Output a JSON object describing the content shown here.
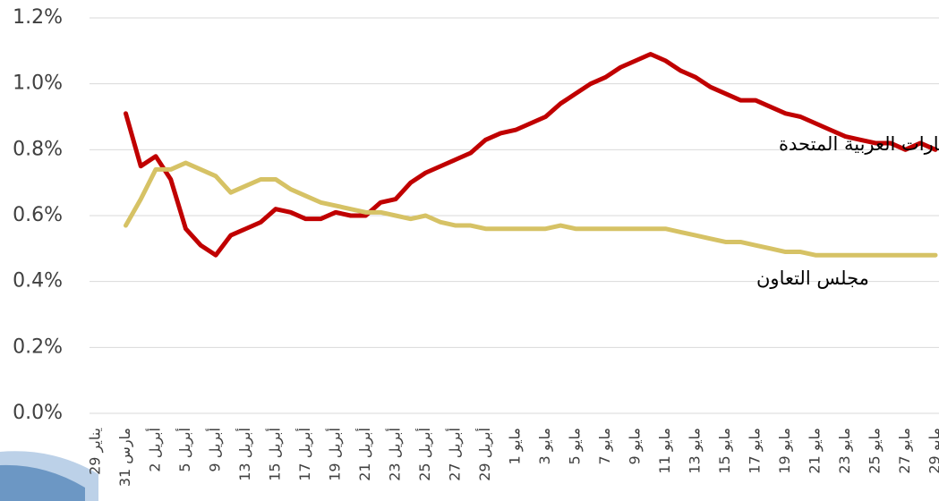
{
  "chart_data": {
    "type": "line",
    "categories": [
      "29 يناير",
      null,
      "31 مارس",
      null,
      "2 أبريل",
      null,
      "5 أبريل",
      null,
      "9 أبريل",
      null,
      "13 أبريل",
      null,
      "15 أبريل",
      null,
      "17 أبريل",
      null,
      "19 أبريل",
      null,
      "21 أبريل",
      null,
      "23 أبريل",
      null,
      "25 أبريل",
      null,
      "27 أبريل",
      null,
      "29 أبريل",
      null,
      "1 مايو",
      null,
      "3 مايو",
      null,
      "5 مايو",
      null,
      "7 مايو",
      null,
      "9 مايو",
      null,
      "11 مايو",
      null,
      "13 مايو",
      null,
      "15 مايو",
      null,
      "17 مايو",
      null,
      "19 مايو",
      null,
      "21 مايو",
      null,
      "23 مايو",
      null,
      "25 مايو",
      null,
      "27 مايو",
      null,
      "29 مايو"
    ],
    "series": [
      {
        "name": "الإمارات العربية المتحدة",
        "color": "#c00000",
        "values": [
          null,
          null,
          0.91,
          0.75,
          0.78,
          0.71,
          0.56,
          0.51,
          0.48,
          0.54,
          0.56,
          0.58,
          0.62,
          0.61,
          0.59,
          0.59,
          0.61,
          0.6,
          0.6,
          0.64,
          0.65,
          0.7,
          0.73,
          0.75,
          0.77,
          0.79,
          0.83,
          0.85,
          0.86,
          0.88,
          0.9,
          0.94,
          0.97,
          1.0,
          1.02,
          1.05,
          1.07,
          1.09,
          1.07,
          1.04,
          1.02,
          0.99,
          0.97,
          0.95,
          0.95,
          0.93,
          0.91,
          0.9,
          0.88,
          0.86,
          0.84,
          0.83,
          0.82,
          0.82,
          0.8,
          0.82,
          0.8
        ]
      },
      {
        "name": "مجلس التعاون",
        "color": "#d6c265",
        "values": [
          null,
          null,
          0.57,
          0.65,
          0.74,
          0.74,
          0.76,
          0.74,
          0.72,
          0.67,
          0.69,
          0.71,
          0.71,
          0.68,
          0.66,
          0.64,
          0.63,
          0.62,
          0.61,
          0.61,
          0.6,
          0.59,
          0.6,
          0.58,
          0.57,
          0.57,
          0.56,
          0.56,
          0.56,
          0.56,
          0.56,
          0.57,
          0.56,
          0.56,
          0.56,
          0.56,
          0.56,
          0.56,
          0.56,
          0.55,
          0.54,
          0.53,
          0.52,
          0.52,
          0.51,
          0.5,
          0.49,
          0.49,
          0.48,
          0.48,
          0.48,
          0.48,
          0.48,
          0.48,
          0.48,
          0.48,
          0.48
        ]
      }
    ],
    "ylim": [
      0,
      1.2
    ],
    "yticks": [
      {
        "value": 0,
        "label": "0.0%"
      },
      {
        "value": 0.2,
        "label": "0.2%"
      },
      {
        "value": 0.4,
        "label": "0.4%"
      },
      {
        "value": 0.6,
        "label": "0.6%"
      },
      {
        "value": 0.8,
        "label": "0.8%"
      },
      {
        "value": 1.0,
        "label": "1.0%"
      },
      {
        "value": 1.2,
        "label": "1.2%"
      }
    ],
    "grid": true
  }
}
